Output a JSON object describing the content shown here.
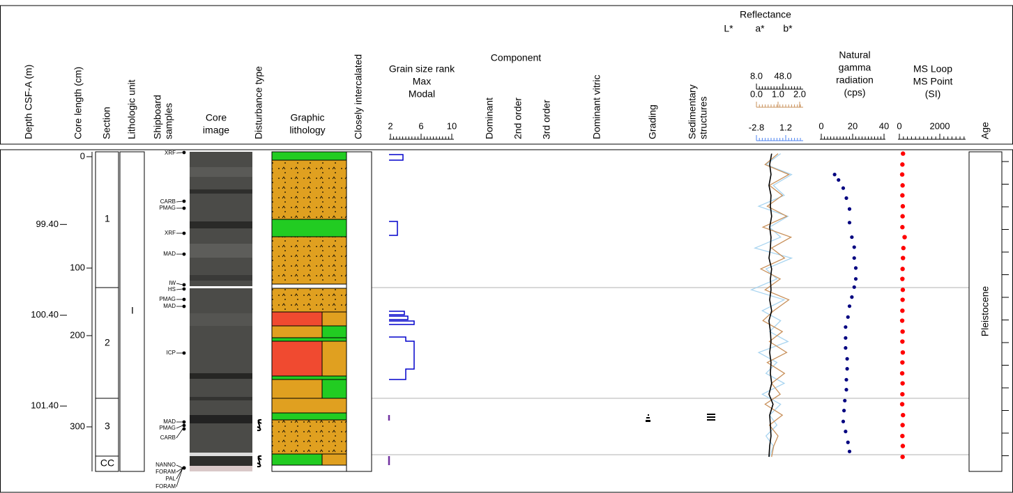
{
  "header": {
    "depth": "Depth CSF-A (m)",
    "core_length": "Core length (cm)",
    "section": "Section",
    "lithologic_unit": "Lithologic unit",
    "shipboard_samples": [
      "Shipboard",
      "samples"
    ],
    "core_image": [
      "Core",
      "image"
    ],
    "disturbance": "Disturbance type",
    "graphic_lithology": [
      "Graphic",
      "lithology"
    ],
    "closely_intercalated": "Closely intercalated",
    "grain_size": {
      "title": "Grain size rank",
      "max": "Max",
      "modal": "Modal",
      "max_color": "#ff0000",
      "modal_color": "#0000cc",
      "ticks": [
        2,
        6,
        10
      ]
    },
    "component": {
      "title": "Component",
      "columns": [
        "Dominant",
        "2nd order",
        "3rd order"
      ]
    },
    "dominant_vitric": "Dominant vitric",
    "grading": "Grading",
    "sedimentary_structures": [
      "Sedimentary",
      "structures"
    ],
    "age": "Age"
  },
  "depth_axis": {
    "ylim": [
      98.6,
      102.12
    ],
    "ticks": [
      {
        "value": 99.4,
        "label": "99.40"
      },
      {
        "value": 100.4,
        "label": "100.40"
      },
      {
        "value": 101.4,
        "label": "101.40"
      }
    ]
  },
  "core_length_ticks": [
    0,
    100,
    200,
    300
  ],
  "sections": [
    "1",
    "2",
    "3",
    "CC"
  ],
  "lithologic_unit": "I",
  "samples": [
    "XRF",
    "CARB",
    "PMAG",
    "XRF",
    "MAD",
    "IW",
    "HS",
    "PMAG",
    "MAD",
    "ICP",
    "MAD",
    "PMAG",
    "CARB",
    "NANNO",
    "FORAM",
    "PAL",
    "FORAM"
  ],
  "age": "Pleistocene",
  "reflectance": {
    "title": "Reflectance",
    "depth": [
      98.62,
      98.74,
      98.85,
      98.97,
      99.08,
      99.2,
      99.31,
      99.43,
      99.54,
      99.66,
      99.77,
      99.89,
      100.0,
      100.12,
      100.23,
      100.35,
      100.46,
      100.58,
      100.69,
      100.81,
      100.92,
      101.04,
      101.15,
      101.27,
      101.38,
      101.5,
      101.61,
      101.73,
      101.84,
      101.96
    ],
    "series": [
      {
        "name": "L*",
        "color": "#000000",
        "label_color": "#000000",
        "ticks": [
          {
            "value": 8,
            "label": "8.0"
          },
          {
            "value": 48,
            "label": "48.0"
          }
        ],
        "values": [
          31,
          28,
          30,
          27,
          30,
          29,
          31,
          28,
          30,
          29,
          27,
          31,
          29,
          30,
          28,
          31,
          27,
          29,
          30,
          28,
          30,
          29,
          31,
          27,
          33,
          28,
          29,
          30,
          28,
          27
        ]
      },
      {
        "name": "a*",
        "color": "#c8905a",
        "label_color": "#c8905a",
        "ticks": [
          {
            "value": 0,
            "label": "0.0"
          },
          {
            "value": 1,
            "label": "1.0"
          },
          {
            "value": 2,
            "label": "2.0"
          }
        ],
        "values": [
          1.0,
          0.4,
          1.5,
          0.6,
          1.2,
          0.5,
          1.4,
          0.3,
          1.6,
          0.7,
          1.3,
          0.2,
          1.1,
          0.4,
          1.5,
          0.8,
          0.3,
          1.2,
          0.6,
          1.4,
          0.5,
          1.3,
          0.7,
          1.1,
          0.4,
          1.2,
          0.6,
          1.0,
          0.8,
          0.7
        ]
      },
      {
        "name": "b*",
        "color": "#a8d4f0",
        "label_color": "#4f86f0",
        "ticks": [
          {
            "value": -2.8,
            "label": "-2.8"
          },
          {
            "value": 1.2,
            "label": "1.2"
          }
        ],
        "values": [
          0.5,
          -1.5,
          2.0,
          -0.5,
          1.0,
          -2.5,
          1.5,
          -1.0,
          0.5,
          -3.0,
          2.0,
          -1.5,
          0.0,
          -3.5,
          1.0,
          -2.0,
          0.5,
          -1.0,
          1.5,
          -2.5,
          0.0,
          -1.5,
          1.0,
          -2.0,
          0.5,
          -1.0,
          0.0,
          -1.5,
          -0.5,
          -1.0
        ]
      }
    ]
  },
  "natural_gamma": {
    "title": [
      "Natural",
      "gamma",
      "radiation",
      "(cps)"
    ],
    "color": "#000080",
    "ticks": [
      0,
      20,
      40
    ],
    "depth": [
      98.85,
      98.91,
      99.0,
      99.11,
      99.23,
      99.38,
      99.54,
      99.65,
      99.77,
      99.88,
      100.0,
      100.09,
      100.2,
      100.3,
      100.42,
      100.53,
      100.65,
      100.76,
      100.88,
      100.99,
      101.11,
      101.22,
      101.34,
      101.45,
      101.57,
      101.68,
      101.8,
      101.9
    ],
    "values": [
      8.5,
      11,
      14,
      16,
      18,
      18,
      19.5,
      21,
      21,
      22,
      22,
      21,
      19.5,
      18,
      17,
      15.5,
      15.5,
      15.5,
      16.5,
      16.5,
      16,
      16,
      15,
      14.5,
      14,
      15.5,
      17,
      18
    ]
  },
  "magnetic_susceptibility": {
    "title": [
      "MS Loop",
      "MS Point",
      "(SI)"
    ],
    "title_colors": [
      "#000000",
      "#ff0000",
      "#000000"
    ],
    "color": "#ff0000",
    "ticks": [
      0,
      2000
    ],
    "depth": [
      98.62,
      98.74,
      98.85,
      98.97,
      99.08,
      99.2,
      99.31,
      99.43,
      99.54,
      99.66,
      99.77,
      99.89,
      100.0,
      100.12,
      100.23,
      100.35,
      100.46,
      100.58,
      100.69,
      100.81,
      100.92,
      101.04,
      101.15,
      101.27,
      101.38,
      101.5,
      101.61,
      101.73,
      101.84,
      101.96
    ],
    "values": [
      180,
      150,
      140,
      160,
      150,
      170,
      160,
      150,
      260,
      200,
      180,
      160,
      150,
      170,
      160,
      150,
      140,
      160,
      150,
      170,
      150,
      140,
      160,
      150,
      140,
      180,
      160,
      150,
      170,
      160
    ]
  }
}
